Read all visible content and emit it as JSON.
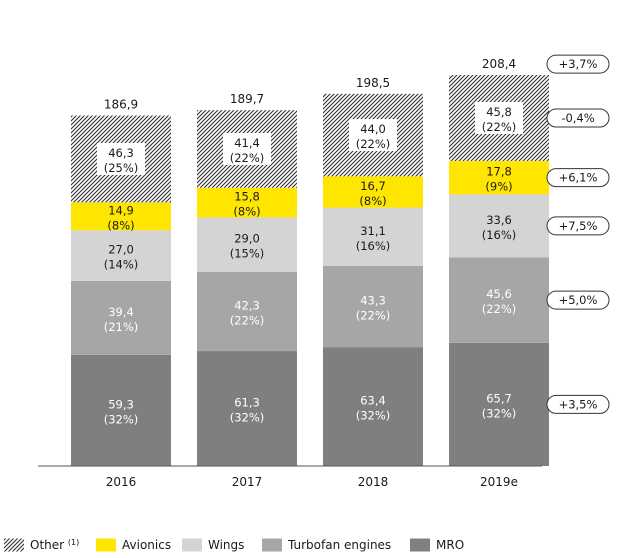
{
  "chart_data": {
    "type": "bar",
    "stacked": true,
    "categories": [
      "2016",
      "2017",
      "2018",
      "2019e"
    ],
    "totals": [
      "186,9",
      "189,7",
      "198,5",
      "208,4"
    ],
    "series": [
      {
        "name": "MRO",
        "color": "#7f7f7f",
        "pattern": "solid",
        "values": [
          59.3,
          61.3,
          63.4,
          65.7
        ],
        "labels": [
          "59,3",
          "61,3",
          "63,4",
          "65,7"
        ],
        "shares": [
          "(32%)",
          "(32%)",
          "(32%)",
          "(32%)"
        ],
        "growth": "+3,5%"
      },
      {
        "name": "Turbofan engines",
        "color": "#a6a6a6",
        "pattern": "solid",
        "values": [
          39.4,
          42.3,
          43.3,
          45.6
        ],
        "labels": [
          "39,4",
          "42,3",
          "43,3",
          "45,6"
        ],
        "shares": [
          "(21%)",
          "(22%)",
          "(22%)",
          "(22%)"
        ],
        "growth": "+5,0%"
      },
      {
        "name": "Wings",
        "color": "#d4d4d4",
        "pattern": "solid",
        "values": [
          27.0,
          29.0,
          31.1,
          33.6
        ],
        "labels": [
          "27,0",
          "29,0",
          "31,1",
          "33,6"
        ],
        "shares": [
          "(14%)",
          "(15%)",
          "(16%)",
          "(16%)"
        ],
        "growth": "+7,5%"
      },
      {
        "name": "Avionics",
        "color": "#ffe600",
        "pattern": "solid",
        "values": [
          14.9,
          15.8,
          16.7,
          17.8
        ],
        "labels": [
          "14,9",
          "15,8",
          "16,7",
          "17,8"
        ],
        "shares": [
          "(8%)",
          "(8%)",
          "(8%)",
          "(9%)"
        ],
        "growth": "+6,1%"
      },
      {
        "name": "Other",
        "color": "#2e2e2e",
        "pattern": "hatched",
        "values": [
          46.3,
          41.4,
          44.0,
          45.8
        ],
        "labels": [
          "46,3",
          "41,4",
          "44,0",
          "45,8"
        ],
        "shares": [
          "(25%)",
          "(22%)",
          "(22%)",
          "(22%)"
        ],
        "growth": "-0,4%"
      }
    ],
    "total_growth": "+3,7%",
    "legend": [
      {
        "name": "Other",
        "sup": "(1)",
        "pattern": "hatched",
        "color": "#2e2e2e"
      },
      {
        "name": "Avionics",
        "sup": "",
        "pattern": "solid",
        "color": "#ffe600"
      },
      {
        "name": "Wings",
        "sup": "",
        "pattern": "solid",
        "color": "#d4d4d4"
      },
      {
        "name": "Turbofan engines",
        "sup": "",
        "pattern": "solid",
        "color": "#a6a6a6"
      },
      {
        "name": "MRO",
        "sup": "",
        "pattern": "solid",
        "color": "#7f7f7f"
      }
    ],
    "legend_position": "bottom",
    "ylim": [
      0,
      215
    ],
    "grid": false,
    "title": "",
    "xlabel": "",
    "ylabel": ""
  }
}
